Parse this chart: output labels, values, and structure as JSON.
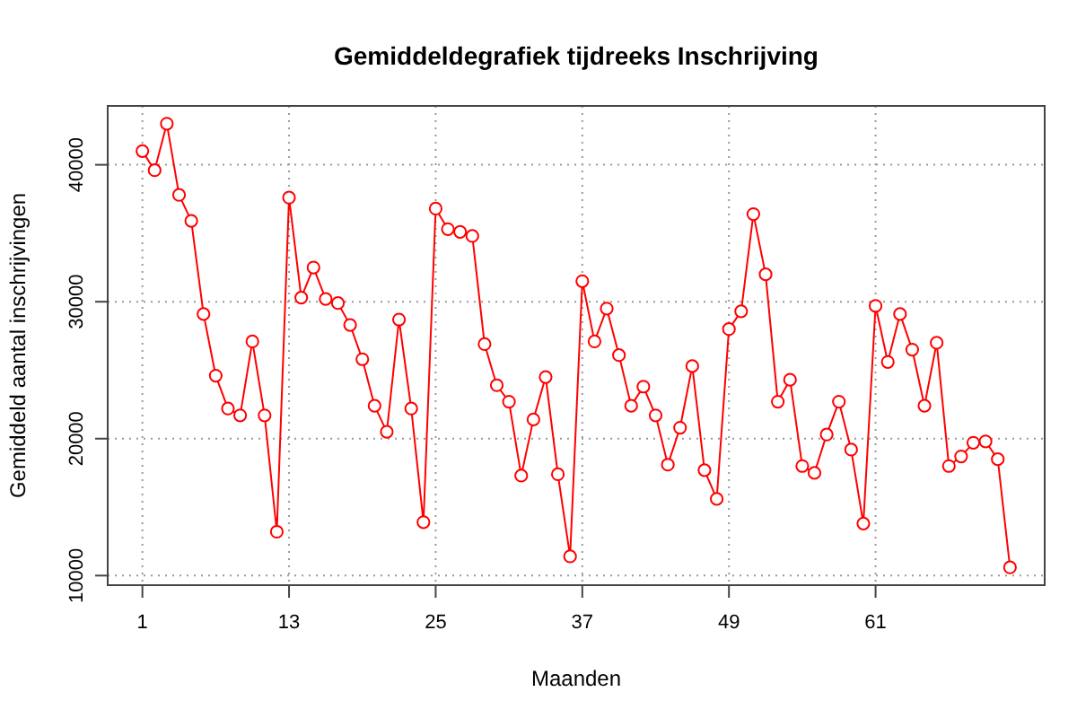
{
  "chart_data": {
    "type": "line",
    "title": "Gemiddeldegrafiek tijdreeks Inschrijving",
    "xlabel": "Maanden",
    "ylabel": "Gemiddeld aantal inschrijvingen",
    "x": [
      1,
      2,
      3,
      4,
      5,
      6,
      7,
      8,
      9,
      10,
      11,
      12,
      13,
      14,
      15,
      16,
      17,
      18,
      19,
      20,
      21,
      22,
      23,
      24,
      25,
      26,
      27,
      28,
      29,
      30,
      31,
      32,
      33,
      34,
      35,
      36,
      37,
      38,
      39,
      40,
      41,
      42,
      43,
      44,
      45,
      46,
      47,
      48,
      49,
      50,
      51,
      52,
      53,
      54,
      55,
      56,
      57,
      58,
      59,
      60,
      61,
      62,
      63,
      64,
      65,
      66,
      67,
      68,
      69,
      70,
      71,
      72
    ],
    "series": [
      {
        "color": "#ff0000",
        "values": [
          41000,
          39600,
          43000,
          37800,
          35900,
          29100,
          24600,
          22200,
          21700,
          27100,
          21700,
          13200,
          37600,
          30300,
          32500,
          30200,
          29900,
          28300,
          25800,
          22400,
          20500,
          28700,
          22200,
          13900,
          36800,
          35300,
          35100,
          34800,
          26900,
          23900,
          22700,
          17300,
          21400,
          24500,
          17400,
          11400,
          31500,
          27100,
          29500,
          26100,
          22400,
          23800,
          21700,
          18100,
          20800,
          25300,
          17700,
          15600,
          28000,
          29300,
          36400,
          32000,
          22700,
          24300,
          18000,
          17500,
          20300,
          22700,
          19200,
          13800,
          29700,
          25600,
          29100,
          26500,
          22400,
          27000,
          18000,
          18700,
          19700,
          19800,
          18500,
          10600
        ]
      }
    ],
    "xlim": [
      -1.84,
      74.84
    ],
    "xticks": [
      1,
      13,
      25,
      37,
      49,
      61
    ],
    "ylim": [
      9300,
      44300
    ],
    "yticks": [
      10000,
      20000,
      30000,
      40000
    ],
    "grid": true,
    "marker": "circle",
    "line_style": "solid"
  }
}
